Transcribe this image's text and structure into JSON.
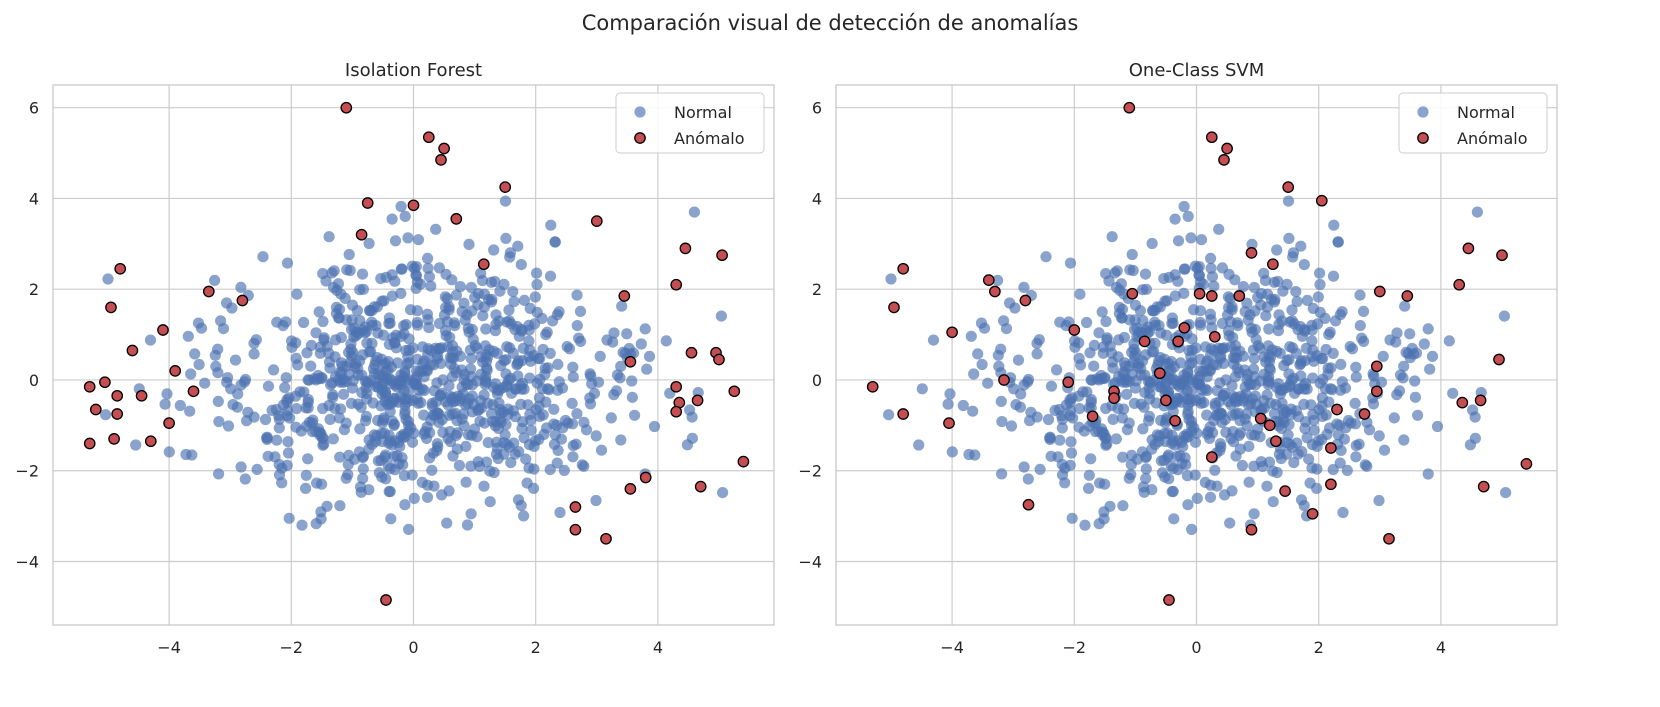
{
  "figure": {
    "title": "Comparación visual de detección de anomalías"
  },
  "colors": {
    "normal": "#4c72b0",
    "anomaly": "#c44e52",
    "anomaly_edge": "#000000",
    "grid": "#cccccc",
    "text": "#262626"
  },
  "chart_data": [
    {
      "type": "scatter",
      "title": "Isolation Forest",
      "xlim": [
        -5.9,
        5.9
      ],
      "ylim": [
        -5.4,
        6.5
      ],
      "xticks": [
        -4,
        -2,
        0,
        2,
        4
      ],
      "yticks": [
        -4,
        -2,
        0,
        2,
        4,
        6
      ],
      "grid": true,
      "legend": {
        "position": "top-right",
        "entries": [
          "Normal",
          "Anómalo"
        ]
      },
      "series": [
        {
          "name": "Normal",
          "seed": 12345,
          "n": 900,
          "xsd": 1.75,
          "ysd": 1.3
        },
        {
          "name": "Anómalo",
          "points": [
            [
              -1.1,
              6.0
            ],
            [
              0.25,
              5.35
            ],
            [
              0.5,
              5.1
            ],
            [
              0.45,
              4.85
            ],
            [
              1.5,
              4.25
            ],
            [
              -0.75,
              3.9
            ],
            [
              0.0,
              3.85
            ],
            [
              0.7,
              3.55
            ],
            [
              3.0,
              3.5
            ],
            [
              -0.85,
              3.2
            ],
            [
              4.45,
              2.9
            ],
            [
              5.05,
              2.75
            ],
            [
              1.15,
              2.55
            ],
            [
              -4.8,
              2.45
            ],
            [
              4.3,
              2.1
            ],
            [
              -3.35,
              1.95
            ],
            [
              3.45,
              1.85
            ],
            [
              -2.8,
              1.75
            ],
            [
              -4.95,
              1.6
            ],
            [
              -4.1,
              1.1
            ],
            [
              -4.6,
              0.65
            ],
            [
              4.55,
              0.6
            ],
            [
              4.95,
              0.6
            ],
            [
              5.0,
              0.45
            ],
            [
              3.55,
              0.4
            ],
            [
              -3.9,
              0.2
            ],
            [
              -5.05,
              -0.05
            ],
            [
              -5.3,
              -0.15
            ],
            [
              4.3,
              -0.15
            ],
            [
              -3.6,
              -0.25
            ],
            [
              5.25,
              -0.25
            ],
            [
              -4.85,
              -0.35
            ],
            [
              -4.45,
              -0.35
            ],
            [
              4.65,
              -0.45
            ],
            [
              4.35,
              -0.5
            ],
            [
              4.3,
              -0.7
            ],
            [
              -5.2,
              -0.65
            ],
            [
              -4.85,
              -0.75
            ],
            [
              -4.0,
              -0.95
            ],
            [
              -4.9,
              -1.3
            ],
            [
              -4.3,
              -1.35
            ],
            [
              -5.3,
              -1.4
            ],
            [
              5.4,
              -1.8
            ],
            [
              3.8,
              -2.15
            ],
            [
              4.7,
              -2.35
            ],
            [
              3.55,
              -2.4
            ],
            [
              2.65,
              -2.8
            ],
            [
              2.65,
              -3.3
            ],
            [
              3.15,
              -3.5
            ],
            [
              -0.45,
              -4.85
            ]
          ]
        }
      ]
    },
    {
      "type": "scatter",
      "title": "One-Class SVM",
      "xlim": [
        -5.9,
        5.9
      ],
      "ylim": [
        -5.4,
        6.5
      ],
      "xticks": [
        -4,
        -2,
        0,
        2,
        4
      ],
      "yticks": [
        -4,
        -2,
        0,
        2,
        4,
        6
      ],
      "grid": true,
      "legend": {
        "position": "top-right",
        "entries": [
          "Normal",
          "Anómalo"
        ]
      },
      "series": [
        {
          "name": "Normal",
          "seed": 12345,
          "n": 900,
          "xsd": 1.75,
          "ysd": 1.3
        },
        {
          "name": "Anómalo",
          "points": [
            [
              -1.1,
              6.0
            ],
            [
              0.25,
              5.35
            ],
            [
              0.5,
              5.1
            ],
            [
              0.45,
              4.85
            ],
            [
              1.5,
              4.25
            ],
            [
              2.05,
              3.95
            ],
            [
              0.9,
              2.8
            ],
            [
              1.25,
              2.55
            ],
            [
              4.45,
              2.9
            ],
            [
              5.0,
              2.75
            ],
            [
              -4.8,
              2.45
            ],
            [
              4.3,
              2.1
            ],
            [
              -3.4,
              2.2
            ],
            [
              -3.3,
              1.95
            ],
            [
              3.0,
              1.95
            ],
            [
              3.45,
              1.85
            ],
            [
              -1.05,
              1.9
            ],
            [
              0.05,
              1.9
            ],
            [
              0.25,
              1.85
            ],
            [
              0.7,
              1.85
            ],
            [
              -2.8,
              1.75
            ],
            [
              -4.95,
              1.6
            ],
            [
              -2.0,
              1.1
            ],
            [
              -0.2,
              1.15
            ],
            [
              -4.0,
              1.05
            ],
            [
              -0.85,
              0.85
            ],
            [
              -0.3,
              0.85
            ],
            [
              0.3,
              0.95
            ],
            [
              4.95,
              0.45
            ],
            [
              2.95,
              0.3
            ],
            [
              -0.6,
              0.15
            ],
            [
              -3.15,
              0.0
            ],
            [
              -2.1,
              -0.05
            ],
            [
              -5.3,
              -0.15
            ],
            [
              2.95,
              -0.25
            ],
            [
              -1.35,
              -0.25
            ],
            [
              -1.35,
              -0.4
            ],
            [
              -0.5,
              -0.45
            ],
            [
              4.35,
              -0.5
            ],
            [
              4.65,
              -0.45
            ],
            [
              2.3,
              -0.65
            ],
            [
              2.75,
              -0.75
            ],
            [
              -4.8,
              -0.75
            ],
            [
              -1.7,
              -0.8
            ],
            [
              1.05,
              -0.85
            ],
            [
              -0.35,
              -0.9
            ],
            [
              -4.05,
              -0.95
            ],
            [
              1.2,
              -1.0
            ],
            [
              1.3,
              -1.35
            ],
            [
              2.2,
              -1.5
            ],
            [
              0.25,
              -1.7
            ],
            [
              5.4,
              -1.85
            ],
            [
              2.2,
              -2.3
            ],
            [
              4.7,
              -2.35
            ],
            [
              1.45,
              -2.45
            ],
            [
              -2.75,
              -2.75
            ],
            [
              1.9,
              -2.95
            ],
            [
              0.9,
              -3.3
            ],
            [
              3.15,
              -3.5
            ],
            [
              -0.45,
              -4.85
            ]
          ]
        }
      ]
    }
  ]
}
